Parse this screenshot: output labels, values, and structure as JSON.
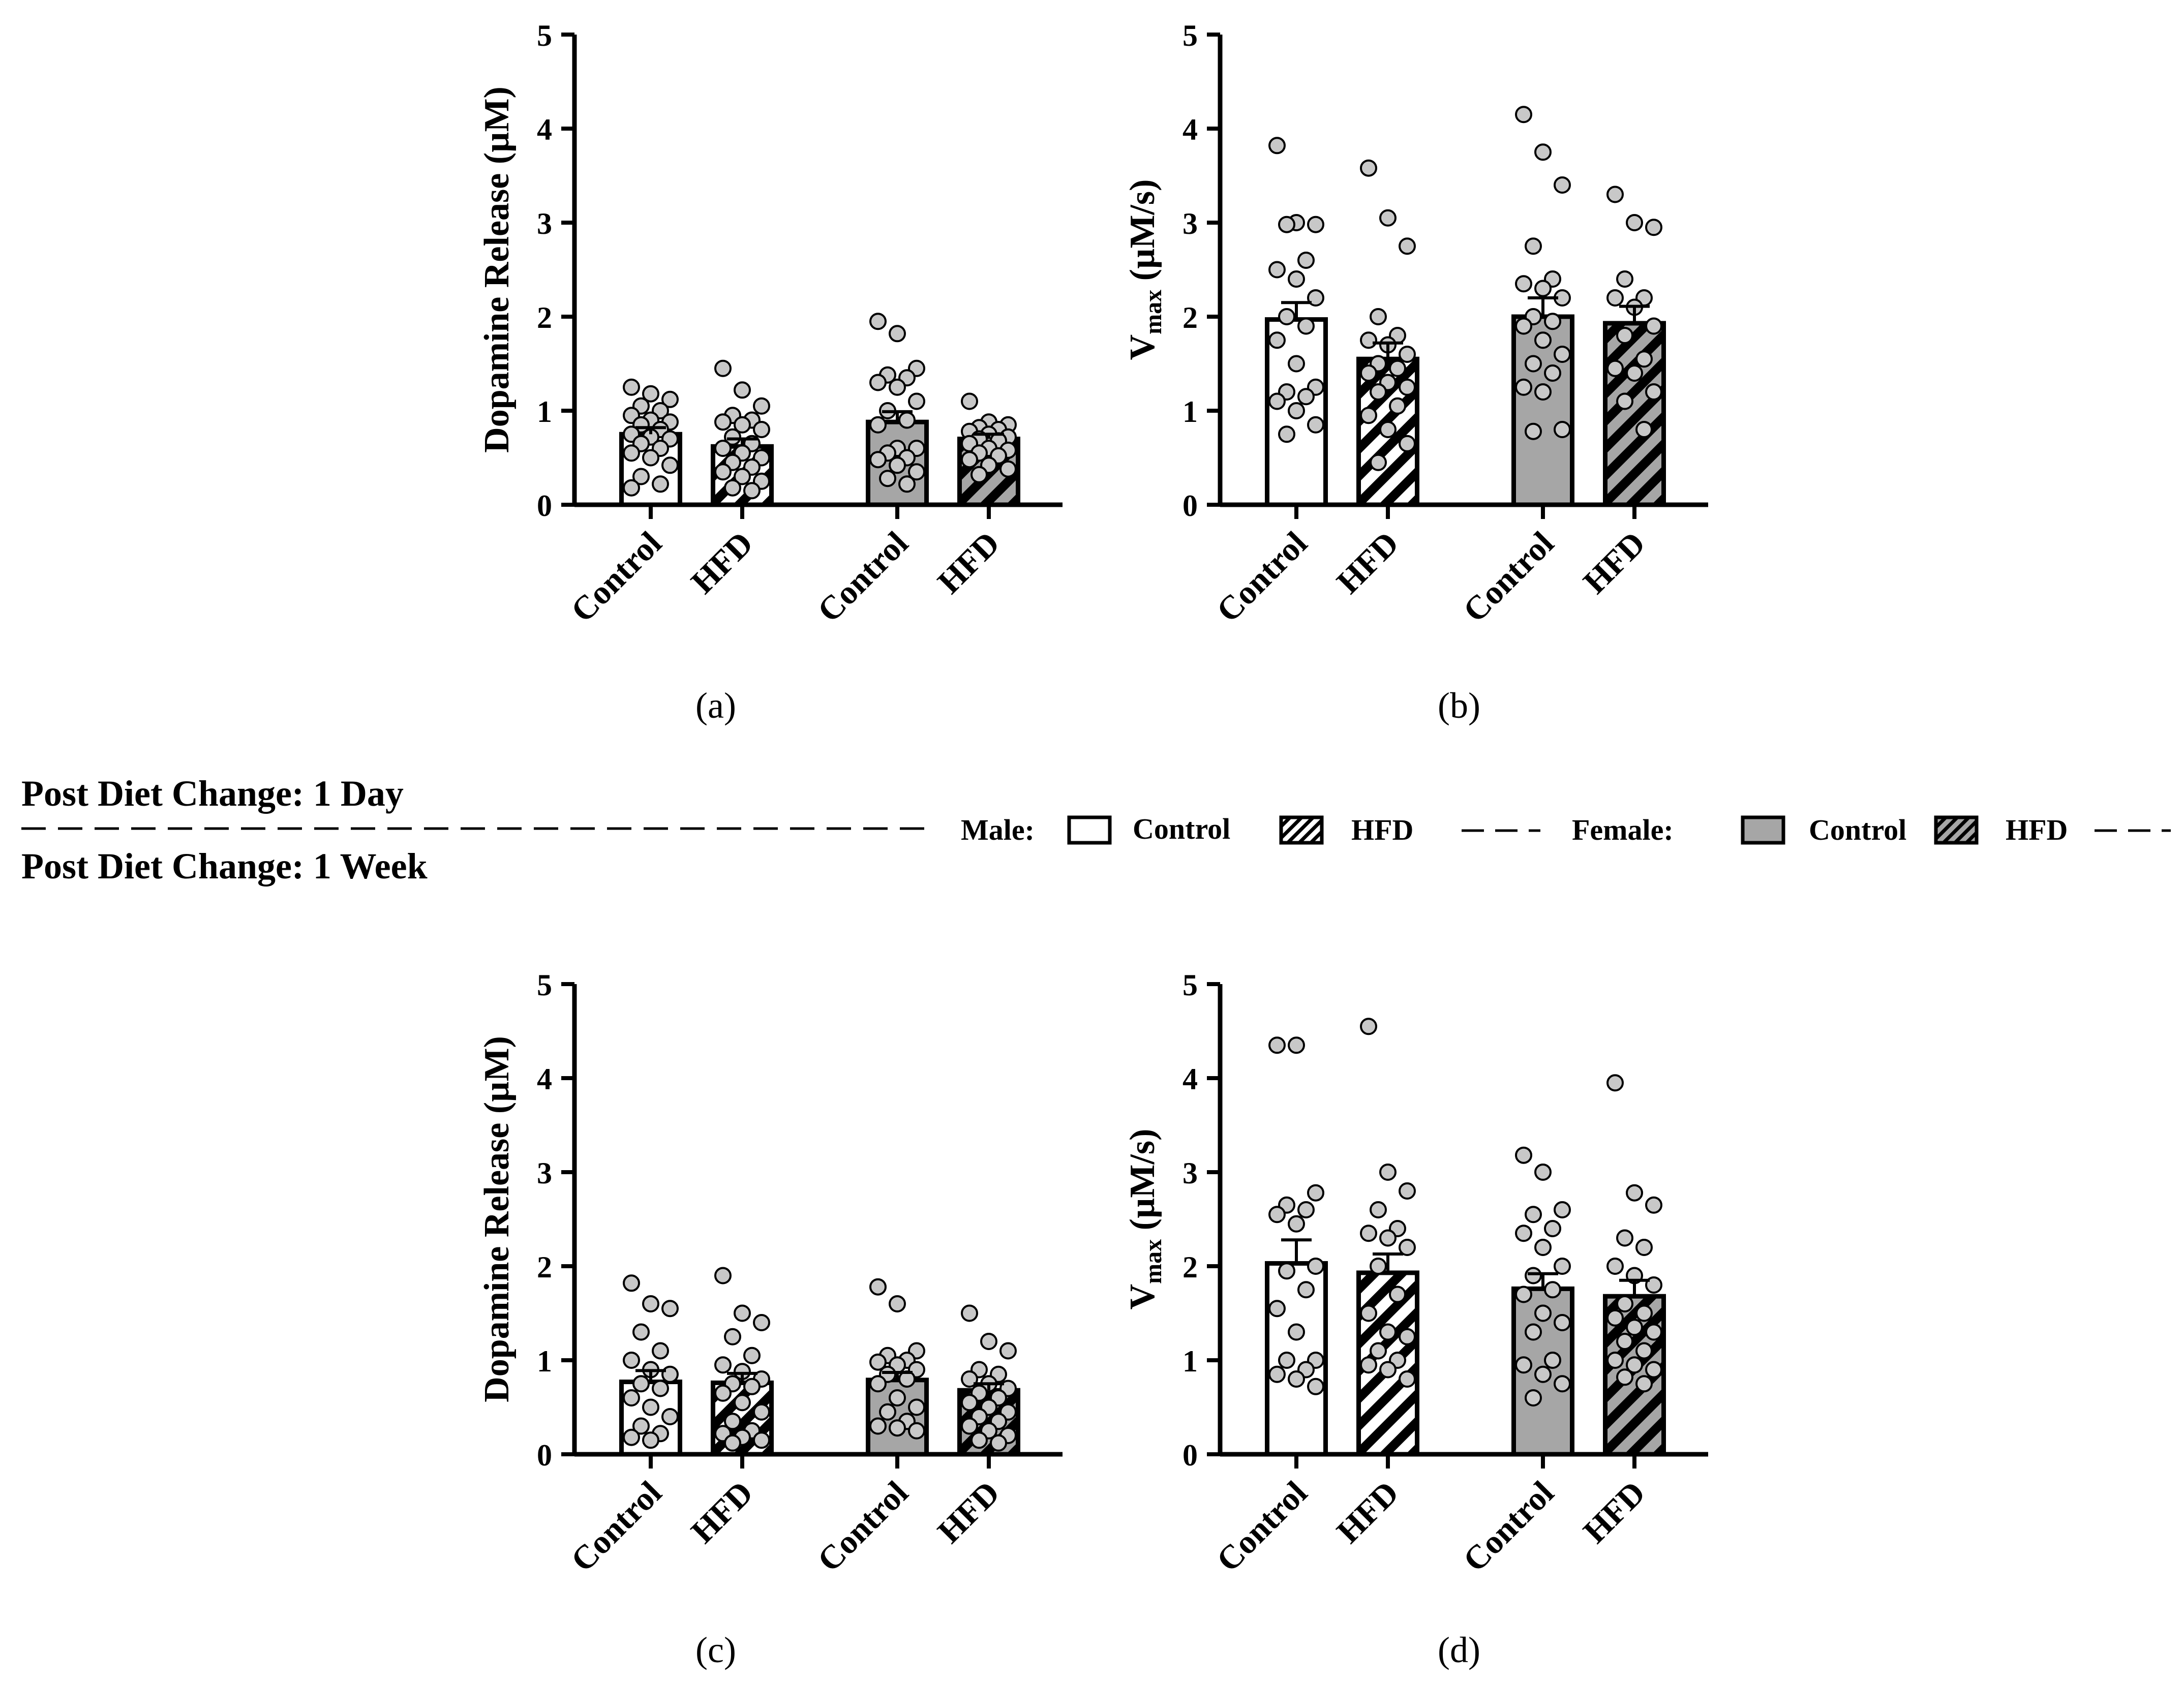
{
  "chart_data": [
    {
      "panel": "(a)",
      "type": "bar",
      "subtitle": "Post Diet Change: 1 Day",
      "ylabel": "Dopamine Release (µM)",
      "ylim": [
        0,
        5
      ],
      "yticks": [
        "0",
        "1",
        "2",
        "3",
        "4",
        "5"
      ],
      "categories": [
        "Control",
        "HFD",
        "Control",
        "HFD"
      ],
      "sex": [
        "Male",
        "Male",
        "Female",
        "Female"
      ],
      "values": [
        0.75,
        0.62,
        0.88,
        0.7
      ],
      "sem": [
        0.07,
        0.08,
        0.11,
        0.05
      ],
      "points": [
        [
          1.25,
          1.18,
          1.12,
          1.05,
          1.0,
          0.95,
          0.9,
          0.88,
          0.85,
          0.8,
          0.75,
          0.72,
          0.7,
          0.65,
          0.6,
          0.55,
          0.5,
          0.42,
          0.3,
          0.22,
          0.18
        ],
        [
          1.45,
          1.22,
          1.05,
          0.95,
          0.9,
          0.88,
          0.85,
          0.8,
          0.72,
          0.65,
          0.6,
          0.55,
          0.5,
          0.45,
          0.4,
          0.35,
          0.3,
          0.25,
          0.18,
          0.15
        ],
        [
          1.95,
          1.82,
          1.45,
          1.38,
          1.35,
          1.3,
          1.25,
          1.1,
          1.0,
          0.9,
          0.85,
          0.6,
          0.6,
          0.55,
          0.5,
          0.48,
          0.42,
          0.35,
          0.28,
          0.22
        ],
        [
          1.1,
          0.88,
          0.85,
          0.82,
          0.8,
          0.78,
          0.75,
          0.72,
          0.7,
          0.68,
          0.65,
          0.6,
          0.58,
          0.55,
          0.52,
          0.48,
          0.42,
          0.38,
          0.32
        ]
      ]
    },
    {
      "panel": "(b)",
      "type": "bar",
      "subtitle": "Post Diet Change: 1 Day",
      "ylabel": "V",
      "ylabel_sub": "max",
      "ylabel_unit": " (µM/s)",
      "ylim": [
        0,
        5
      ],
      "yticks": [
        "0",
        "1",
        "2",
        "3",
        "4",
        "5"
      ],
      "categories": [
        "Control",
        "HFD",
        "Control",
        "HFD"
      ],
      "sex": [
        "Male",
        "Male",
        "Female",
        "Female"
      ],
      "values": [
        1.97,
        1.55,
        2.0,
        1.93
      ],
      "sem": [
        0.18,
        0.17,
        0.2,
        0.18
      ],
      "points": [
        [
          3.82,
          3.0,
          2.98,
          2.98,
          2.6,
          2.5,
          2.4,
          2.2,
          2.0,
          1.9,
          1.75,
          1.5,
          1.25,
          1.2,
          1.15,
          1.1,
          1.0,
          0.85,
          0.75
        ],
        [
          3.58,
          3.05,
          2.75,
          2.0,
          1.8,
          1.75,
          1.7,
          1.6,
          1.5,
          1.45,
          1.4,
          1.3,
          1.25,
          1.2,
          1.05,
          0.95,
          0.8,
          0.65,
          0.45
        ],
        [
          4.15,
          3.75,
          3.4,
          2.75,
          2.4,
          2.35,
          2.3,
          2.2,
          2.0,
          1.95,
          1.9,
          1.75,
          1.6,
          1.5,
          1.4,
          1.25,
          1.2,
          0.8,
          0.78
        ],
        [
          3.3,
          3.0,
          2.95,
          2.4,
          2.2,
          2.2,
          2.1,
          1.9,
          1.8,
          1.55,
          1.45,
          1.4,
          1.2,
          1.1,
          0.8
        ]
      ]
    },
    {
      "panel": "(c)",
      "type": "bar",
      "subtitle": "Post Diet Change: 1 Week",
      "ylabel": "Dopamine Release (µM)",
      "ylim": [
        0,
        5
      ],
      "yticks": [
        "0",
        "1",
        "2",
        "3",
        "4",
        "5"
      ],
      "categories": [
        "Control",
        "HFD",
        "Control",
        "HFD"
      ],
      "sex": [
        "Male",
        "Male",
        "Female",
        "Female"
      ],
      "values": [
        0.77,
        0.76,
        0.79,
        0.68
      ],
      "sem": [
        0.12,
        0.1,
        0.08,
        0.07
      ],
      "points": [
        [
          1.82,
          1.6,
          1.55,
          1.3,
          1.1,
          1.0,
          0.9,
          0.85,
          0.75,
          0.7,
          0.6,
          0.5,
          0.4,
          0.3,
          0.22,
          0.18,
          0.15
        ],
        [
          1.9,
          1.5,
          1.4,
          1.25,
          1.05,
          0.95,
          0.88,
          0.8,
          0.75,
          0.72,
          0.65,
          0.55,
          0.45,
          0.35,
          0.25,
          0.22,
          0.18,
          0.15,
          0.12
        ],
        [
          1.78,
          1.6,
          1.1,
          1.05,
          1.0,
          0.98,
          0.95,
          0.9,
          0.85,
          0.8,
          0.75,
          0.6,
          0.5,
          0.45,
          0.35,
          0.3,
          0.28,
          0.25
        ],
        [
          1.5,
          1.2,
          1.1,
          0.9,
          0.85,
          0.8,
          0.75,
          0.7,
          0.65,
          0.6,
          0.55,
          0.5,
          0.45,
          0.4,
          0.35,
          0.3,
          0.25,
          0.2,
          0.15,
          0.12
        ]
      ]
    },
    {
      "panel": "(d)",
      "type": "bar",
      "subtitle": "Post Diet Change: 1 Week",
      "ylabel": "V",
      "ylabel_sub": "max",
      "ylabel_unit": " (µM/s)",
      "ylim": [
        0,
        5
      ],
      "yticks": [
        "0",
        "1",
        "2",
        "3",
        "4",
        "5"
      ],
      "categories": [
        "Control",
        "HFD",
        "Control",
        "HFD"
      ],
      "sex": [
        "Male",
        "Male",
        "Female",
        "Female"
      ],
      "values": [
        2.03,
        1.93,
        1.76,
        1.68
      ],
      "sem": [
        0.25,
        0.2,
        0.16,
        0.17
      ],
      "points": [
        [
          4.35,
          4.35,
          2.78,
          2.65,
          2.6,
          2.55,
          2.45,
          2.0,
          1.95,
          1.75,
          1.55,
          1.3,
          1.0,
          1.0,
          0.9,
          0.85,
          0.8,
          0.72
        ],
        [
          4.55,
          3.0,
          2.8,
          2.6,
          2.4,
          2.35,
          2.3,
          2.2,
          2.0,
          1.7,
          1.5,
          1.3,
          1.25,
          1.1,
          1.0,
          0.95,
          0.9,
          0.8
        ],
        [
          3.18,
          3.0,
          2.6,
          2.55,
          2.4,
          2.35,
          2.2,
          2.0,
          1.9,
          1.75,
          1.7,
          1.5,
          1.4,
          1.3,
          1.0,
          0.95,
          0.85,
          0.75,
          0.6
        ],
        [
          3.95,
          2.78,
          2.65,
          2.3,
          2.2,
          2.0,
          1.9,
          1.8,
          1.6,
          1.5,
          1.45,
          1.35,
          1.3,
          1.2,
          1.1,
          1.0,
          0.95,
          0.9,
          0.82,
          0.75
        ]
      ]
    }
  ],
  "labels": {
    "panel_a": "(a)",
    "panel_b": "(b)",
    "panel_c": "(c)",
    "panel_d": "(d)",
    "section_top": "Post Diet Change: 1 Day",
    "section_bottom": "Post Diet Change: 1 Week"
  },
  "legend": {
    "male_label": "Male:",
    "female_label": "Female:",
    "control_label": "Control",
    "hfd_label": "HFD",
    "dashes": "———"
  },
  "colors": {
    "male_fill": "#ffffff",
    "female_fill": "#a6a6a6",
    "point_fill": "#c8c8c8",
    "stroke": "#000000"
  }
}
